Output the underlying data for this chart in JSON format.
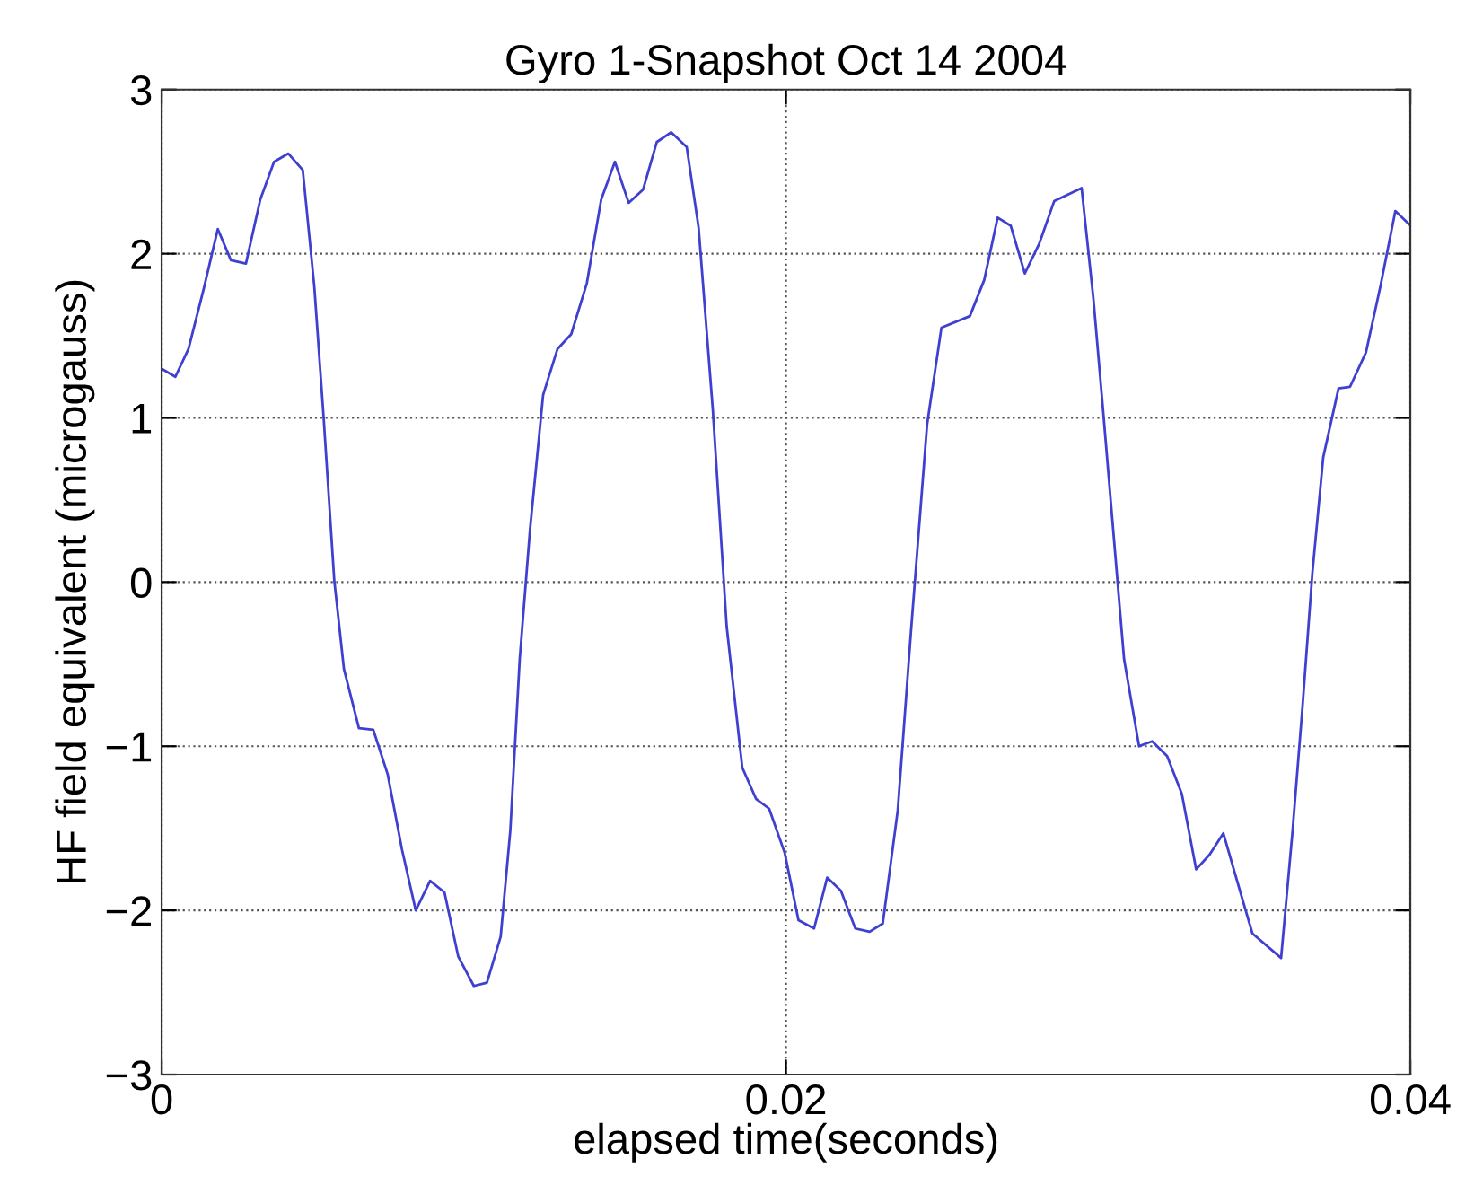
{
  "chart_data": {
    "type": "line",
    "title": "Gyro 1-Snapshot Oct 14 2004",
    "xlabel": "elapsed time(seconds)",
    "ylabel": "HF field equivalent (microgauss)",
    "x": [
      0,
      0.00044,
      0.00086,
      0.00134,
      0.0018,
      0.00222,
      0.0027,
      0.00316,
      0.0036,
      0.00406,
      0.00452,
      0.00489,
      0.00519,
      0.00553,
      0.00584,
      0.00632,
      0.00678,
      0.00724,
      0.0077,
      0.00814,
      0.0086,
      0.00906,
      0.0095,
      0.01,
      0.01042,
      0.01086,
      0.01117,
      0.01147,
      0.0118,
      0.01222,
      0.01268,
      0.01312,
      0.01362,
      0.01408,
      0.01452,
      0.01496,
      0.01542,
      0.01586,
      0.01632,
      0.01682,
      0.0172,
      0.01766,
      0.0181,
      0.0186,
      0.01904,
      0.01946,
      0.01996,
      0.0204,
      0.0209,
      0.02132,
      0.02176,
      0.02222,
      0.02268,
      0.0231,
      0.02358,
      0.024,
      0.02452,
      0.02498,
      0.02589,
      0.02635,
      0.02678,
      0.0272,
      0.02765,
      0.02811,
      0.02859,
      0.02947,
      0.02985,
      0.03016,
      0.03048,
      0.03083,
      0.03131,
      0.03173,
      0.03221,
      0.03268,
      0.03314,
      0.03357,
      0.03401,
      0.03445,
      0.03494,
      0.03586,
      0.03623,
      0.03655,
      0.03686,
      0.03721,
      0.0377,
      0.03807,
      0.03858,
      0.03904,
      0.03952,
      0.03996
    ],
    "series": [
      {
        "color": "#4040d0",
        "values": [
          1.3,
          1.25,
          1.42,
          1.78,
          2.15,
          1.96,
          1.94,
          2.33,
          2.56,
          2.61,
          2.51,
          1.8,
          1.0,
          0.01,
          -0.53,
          -0.89,
          -0.9,
          -1.17,
          -1.63,
          -2.0,
          -1.82,
          -1.89,
          -2.28,
          -2.46,
          -2.44,
          -2.16,
          -1.51,
          -0.47,
          0.32,
          1.14,
          1.42,
          1.51,
          1.82,
          2.33,
          2.56,
          2.31,
          2.39,
          2.68,
          2.74,
          2.65,
          2.16,
          1.04,
          -0.27,
          -1.13,
          -1.32,
          -1.38,
          -1.65,
          -2.06,
          -2.11,
          -1.8,
          -1.88,
          -2.11,
          -2.13,
          -2.08,
          -1.39,
          -0.31,
          0.96,
          1.55,
          1.62,
          1.84,
          2.22,
          2.17,
          1.88,
          2.06,
          2.32,
          2.4,
          1.72,
          1.04,
          0.32,
          -0.47,
          -1.0,
          -0.97,
          -1.06,
          -1.29,
          -1.75,
          -1.66,
          -1.53,
          -1.82,
          -2.14,
          -2.29,
          -1.51,
          -0.75,
          0.05,
          0.76,
          1.18,
          1.19,
          1.4,
          1.8,
          2.26,
          2.18
        ]
      }
    ],
    "xlim": [
      0,
      0.04
    ],
    "xticks": [
      0,
      0.02,
      0.04
    ],
    "ylim": [
      -3,
      3
    ],
    "yticks": [
      -3,
      -2,
      -1,
      0,
      1,
      2,
      3
    ],
    "grid": true,
    "line_style": "solid",
    "marker": "none"
  }
}
